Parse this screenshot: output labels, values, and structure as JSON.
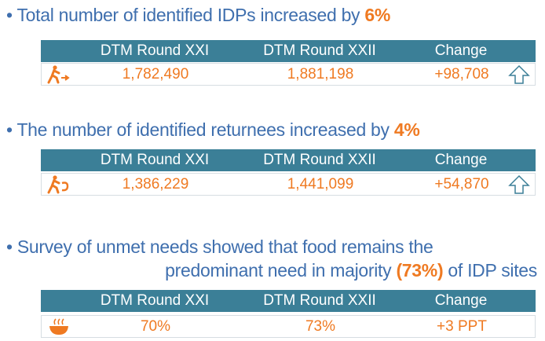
{
  "sections": [
    {
      "heading": "Total number of identified IDPs increased by",
      "highlight": "6%",
      "columns": [
        "DTM Round XXI",
        "DTM Round XXII",
        "Change"
      ],
      "row": [
        "1,782,490",
        "1,881,198",
        "+98,708"
      ]
    },
    {
      "heading": "The number of identified returnees increased by",
      "highlight": "4%",
      "columns": [
        "DTM Round XXI",
        "DTM Round XXII",
        "Change"
      ],
      "row": [
        "1,386,229",
        "1,441,099",
        "+54,870"
      ]
    },
    {
      "heading": "Survey of unmet needs showed that food remains the",
      "heading_line2": "predominant need in majority",
      "highlight": "(73%)",
      "heading_after": "of IDP sites",
      "columns": [
        "DTM Round XXI",
        "DTM Round XXII",
        "Change"
      ],
      "row": [
        "70%",
        "73%",
        "+3 PPT"
      ]
    }
  ]
}
